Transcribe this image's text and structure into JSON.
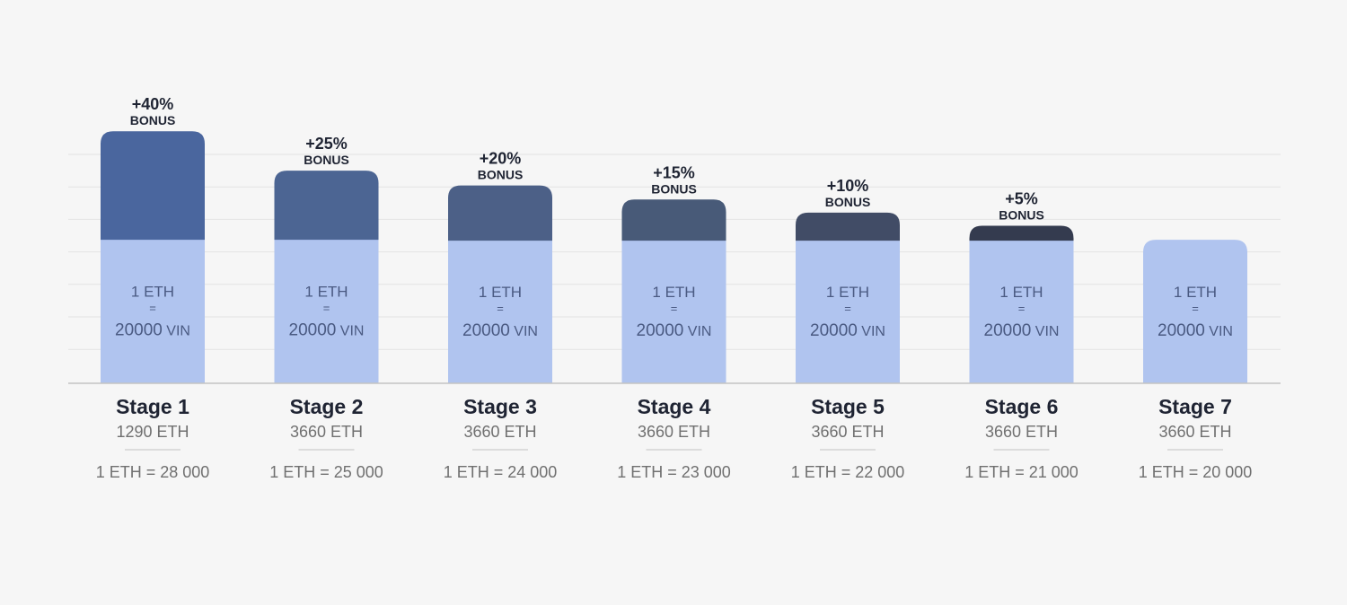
{
  "chart_data": {
    "type": "bar",
    "stacked": true,
    "grid": true,
    "ylim": [
      0,
      27
    ],
    "base_label": {
      "line1": "1 ETH",
      "line2": "=",
      "line3_num": "20000",
      "line3_unit": "VIN"
    },
    "bonus_word": "BONUS",
    "stages": [
      {
        "name": "Stage 1",
        "cap": "1290 ETH",
        "rate": "1 ETH = 28 000",
        "base_value": 16.5,
        "bonus_value": 12.3,
        "bonus_label": "+40%",
        "bonus_color": "#4a669e"
      },
      {
        "name": "Stage 2",
        "cap": "3660 ETH",
        "rate": "1 ETH = 25 000",
        "base_value": 16.5,
        "bonus_value": 7.8,
        "bonus_label": "+25%",
        "bonus_color": "#4c6593"
      },
      {
        "name": "Stage 3",
        "cap": "3660 ETH",
        "rate": "1 ETH = 24 000",
        "base_value": 16.4,
        "bonus_value": 6.2,
        "bonus_label": "+20%",
        "bonus_color": "#4c6087"
      },
      {
        "name": "Stage 4",
        "cap": "3660 ETH",
        "rate": "1 ETH = 23 000",
        "base_value": 16.4,
        "bonus_value": 4.6,
        "bonus_label": "+15%",
        "bonus_color": "#485a78"
      },
      {
        "name": "Stage 5",
        "cap": "3660 ETH",
        "rate": "1 ETH = 22 000",
        "base_value": 16.4,
        "bonus_value": 3.1,
        "bonus_label": "+10%",
        "bonus_color": "#414c66"
      },
      {
        "name": "Stage 6",
        "cap": "3660 ETH",
        "rate": "1 ETH = 21 000",
        "base_value": 16.4,
        "bonus_value": 1.6,
        "bonus_label": "+5%",
        "bonus_color": "#343b4f"
      },
      {
        "name": "Stage 7",
        "cap": "3660 ETH",
        "rate": "1 ETH = 20 000",
        "base_value": 16.4,
        "bonus_value": 0,
        "bonus_label": "",
        "bonus_color": ""
      }
    ],
    "colors": {
      "base": "#b0c4ef",
      "base_text": "#4a5a82",
      "grid": "#e3e3e3",
      "axis": "#c4c4c4",
      "label_dark": "#1f2433",
      "label_gray": "#707070",
      "divider": "#cccccc"
    }
  }
}
